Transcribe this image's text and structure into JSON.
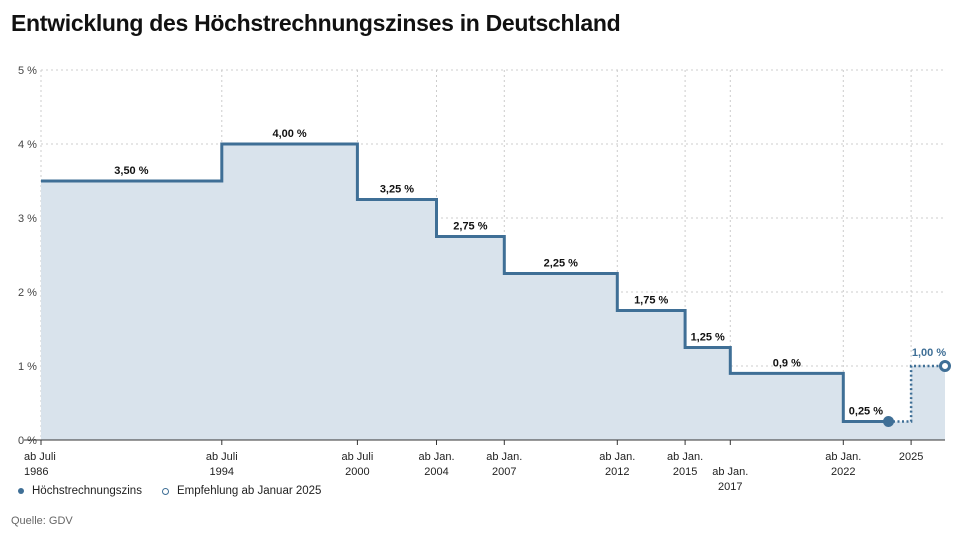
{
  "title": "Entwicklung des Höchstrechnungszinses in Deutschland",
  "source": "Quelle: GDV",
  "colors": {
    "line": "#3f6f96",
    "area": "#d9e3ec",
    "grid": "#cccccc"
  },
  "legend": {
    "items": [
      {
        "label": "Höchstrechnungszins",
        "marker": "filled-dot"
      },
      {
        "label": "Empfehlung ab Januar 2025",
        "marker": "open-dot"
      }
    ]
  },
  "chart_data": {
    "type": "line",
    "title": "Entwicklung des Höchstrechnungszinses in Deutschland",
    "xlabel": "",
    "ylabel": "",
    "xlim": [
      1986.5,
      2026.5
    ],
    "ylim": [
      0,
      5
    ],
    "grid": true,
    "legend_position": "bottom-left",
    "y_ticks": [
      {
        "value": 0,
        "label": "0 %"
      },
      {
        "value": 1,
        "label": "1 %"
      },
      {
        "value": 2,
        "label": "2 %"
      },
      {
        "value": 3,
        "label": "3 %"
      },
      {
        "value": 4,
        "label": "4 %"
      },
      {
        "value": 5,
        "label": "5 %"
      }
    ],
    "x_ticks": [
      {
        "x": 1986.5,
        "lines": [
          "ab Juli",
          "1986"
        ],
        "offset": 0
      },
      {
        "x": 1994.5,
        "lines": [
          "ab Juli",
          "1994"
        ],
        "offset": 0
      },
      {
        "x": 2000.5,
        "lines": [
          "ab Juli",
          "2000"
        ],
        "offset": 0
      },
      {
        "x": 2004,
        "lines": [
          "ab Jan.",
          "2004"
        ],
        "offset": 0
      },
      {
        "x": 2007,
        "lines": [
          "ab Jan.",
          "2007"
        ],
        "offset": 0
      },
      {
        "x": 2012,
        "lines": [
          "ab Jan.",
          "2012"
        ],
        "offset": 0
      },
      {
        "x": 2015,
        "lines": [
          "ab Jan.",
          "2015"
        ],
        "offset": 0
      },
      {
        "x": 2017,
        "lines": [
          "ab Jan.",
          "2017"
        ],
        "offset": 1
      },
      {
        "x": 2022,
        "lines": [
          "ab Jan.",
          "2022"
        ],
        "offset": 0
      },
      {
        "x": 2025,
        "lines": [
          "2025"
        ],
        "offset": 0
      }
    ],
    "series": [
      {
        "name": "Höchstrechnungszins",
        "steps": [
          {
            "from": 1986.5,
            "to": 1994.5,
            "value": 3.5,
            "label": "3,50 %"
          },
          {
            "from": 1994.5,
            "to": 2000.5,
            "value": 4.0,
            "label": "4,00 %"
          },
          {
            "from": 2000.5,
            "to": 2004,
            "value": 3.25,
            "label": "3,25 %"
          },
          {
            "from": 2004,
            "to": 2007,
            "value": 2.75,
            "label": "2,75 %"
          },
          {
            "from": 2007,
            "to": 2012,
            "value": 2.25,
            "label": "2,25 %"
          },
          {
            "from": 2012,
            "to": 2015,
            "value": 1.75,
            "label": "1,75 %"
          },
          {
            "from": 2015,
            "to": 2017,
            "value": 1.25,
            "label": "1,25 %"
          },
          {
            "from": 2017,
            "to": 2022,
            "value": 0.9,
            "label": "0,9 %"
          },
          {
            "from": 2022,
            "to": 2024,
            "value": 0.25,
            "label": "0,25 %"
          }
        ],
        "endpoint": {
          "x": 2024,
          "value": 0.25
        }
      },
      {
        "name": "Empfehlung ab Januar 2025",
        "steps": [
          {
            "from": 2024,
            "to": 2025,
            "value": 0.25
          },
          {
            "from": 2025,
            "to": 2026.5,
            "value": 1.0,
            "label": "1,00 %"
          }
        ],
        "endpoint": {
          "x": 2026.5,
          "value": 1.0
        }
      }
    ]
  }
}
